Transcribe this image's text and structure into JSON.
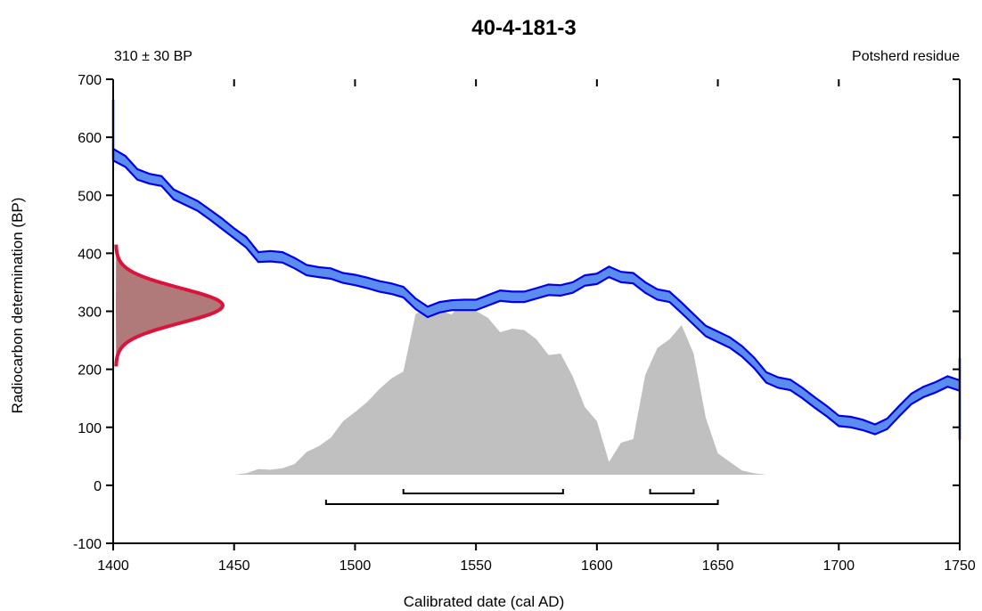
{
  "chart_data": {
    "type": "area",
    "title": "40-4-181-3",
    "measurement_label": "310 ± 30 BP",
    "sample_label": "Potsherd residue",
    "xlabel": "Calibrated date (cal AD)",
    "ylabel": "Radiocarbon determination (BP)",
    "xlim": [
      1400,
      1750
    ],
    "ylim": [
      -100,
      700
    ],
    "x_ticks": [
      1400,
      1450,
      1500,
      1550,
      1600,
      1650,
      1700,
      1750
    ],
    "y_ticks": [
      -100,
      0,
      100,
      200,
      300,
      400,
      500,
      600,
      700
    ],
    "grid": false,
    "colors": {
      "curve_fill": "#5B8DEF",
      "curve_line": "#0000EE",
      "measurement_line": "#DC143C",
      "measurement_fill": "#B07A7A",
      "posterior_fill": "#C0C0C0",
      "ranges": "#000000"
    },
    "calibration_curve": {
      "x": [
        1400,
        1405,
        1410,
        1415,
        1420,
        1425,
        1430,
        1435,
        1440,
        1445,
        1450,
        1455,
        1460,
        1465,
        1470,
        1475,
        1480,
        1485,
        1490,
        1495,
        1500,
        1505,
        1510,
        1515,
        1520,
        1525,
        1530,
        1535,
        1540,
        1545,
        1550,
        1555,
        1560,
        1565,
        1570,
        1575,
        1580,
        1585,
        1590,
        1595,
        1600,
        1605,
        1610,
        1615,
        1620,
        1625,
        1630,
        1635,
        1640,
        1645,
        1650,
        1655,
        1660,
        1665,
        1670,
        1675,
        1680,
        1685,
        1690,
        1695,
        1700,
        1705,
        1710,
        1715,
        1720,
        1725,
        1730,
        1735,
        1740,
        1745,
        1750
      ],
      "upper": [
        580,
        568,
        545,
        537,
        533,
        510,
        500,
        490,
        475,
        460,
        443,
        428,
        402,
        404,
        402,
        392,
        380,
        376,
        374,
        366,
        363,
        358,
        352,
        348,
        342,
        322,
        308,
        316,
        319,
        320,
        320,
        328,
        336,
        334,
        334,
        340,
        346,
        345,
        350,
        362,
        365,
        377,
        368,
        366,
        350,
        338,
        334,
        315,
        295,
        275,
        265,
        255,
        240,
        220,
        195,
        186,
        182,
        168,
        152,
        137,
        120,
        118,
        113,
        105,
        115,
        137,
        158,
        170,
        178,
        188,
        181
      ],
      "lower": [
        560,
        549,
        527,
        520,
        516,
        493,
        483,
        473,
        458,
        442,
        426,
        410,
        385,
        386,
        384,
        374,
        362,
        359,
        356,
        349,
        345,
        340,
        334,
        330,
        324,
        304,
        290,
        298,
        302,
        302,
        302,
        310,
        318,
        316,
        316,
        322,
        328,
        327,
        332,
        344,
        347,
        359,
        350,
        348,
        332,
        320,
        316,
        297,
        277,
        257,
        247,
        237,
        222,
        202,
        177,
        168,
        164,
        150,
        134,
        119,
        102,
        100,
        95,
        88,
        97,
        119,
        140,
        152,
        160,
        170,
        163
      ]
    },
    "measurement_distribution": {
      "mean": 310,
      "sigma": 30
    },
    "posterior_distribution": {
      "x": [
        1450,
        1455,
        1460,
        1465,
        1470,
        1475,
        1480,
        1485,
        1490,
        1495,
        1500,
        1505,
        1510,
        1515,
        1520,
        1525,
        1530,
        1535,
        1540,
        1545,
        1550,
        1555,
        1560,
        1565,
        1570,
        1575,
        1580,
        1585,
        1590,
        1595,
        1600,
        1605,
        1610,
        1615,
        1620,
        1625,
        1630,
        1635,
        1640,
        1645,
        1650,
        1655,
        1660,
        1665,
        1670,
        1675
      ],
      "density": [
        0,
        0.02,
        0.08,
        0.07,
        0.09,
        0.15,
        0.32,
        0.4,
        0.52,
        0.75,
        0.88,
        1.02,
        1.2,
        1.35,
        1.45,
        2.25,
        2.37,
        2.3,
        2.25,
        2.45,
        2.3,
        2.2,
        2.0,
        2.05,
        2.03,
        1.9,
        1.68,
        1.7,
        1.38,
        0.95,
        0.75,
        0.18,
        0.45,
        0.5,
        1.4,
        1.78,
        1.9,
        2.1,
        1.7,
        0.8,
        0.3,
        0.18,
        0.06,
        0.02,
        0,
        0
      ]
    },
    "ranges": [
      {
        "from": 1520,
        "to": 1586
      },
      {
        "from": 1622,
        "to": 1640
      },
      {
        "from": 1488,
        "to": 1650
      }
    ]
  }
}
